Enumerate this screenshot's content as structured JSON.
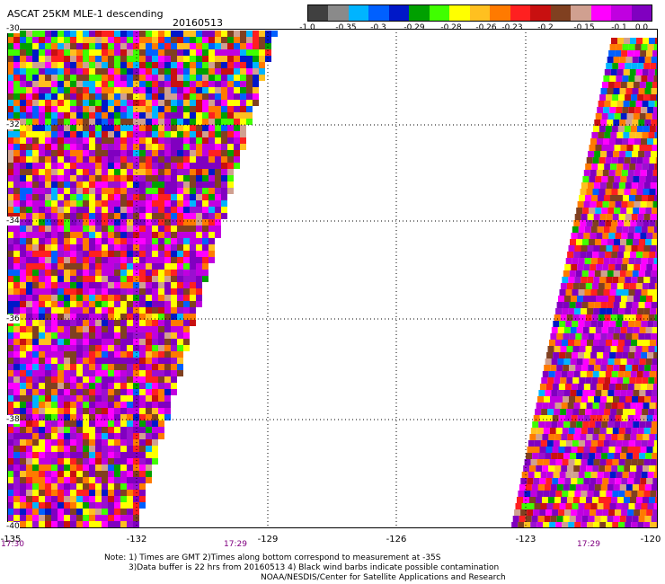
{
  "header": {
    "title": "ASCAT 25KM MLE-1 descending",
    "date": "20160513"
  },
  "colorbar": {
    "colors": [
      "#404040",
      "#8a8a8a",
      "#00b4ff",
      "#0060ff",
      "#0018c8",
      "#00a000",
      "#40ff00",
      "#ffff00",
      "#ffc020",
      "#ff7a00",
      "#ff2020",
      "#c81010",
      "#804020",
      "#d0a090",
      "#ff00ff",
      "#c000e0",
      "#8000c0"
    ],
    "labels": [
      "-1.0",
      "-0.35",
      "-0.3",
      "-0.29",
      "-0.28",
      "-0.26",
      "-0.23",
      "-0.2",
      "-0.15",
      "-0.1",
      "0.0"
    ]
  },
  "axes": {
    "x_ticks": [
      "-135",
      "-132",
      "-129",
      "-126",
      "-123",
      "-120"
    ],
    "y_ticks": [
      "-30",
      "-32",
      "-34",
      "-36",
      "-38",
      "-40"
    ],
    "times": [
      "17:30",
      "17:29",
      "17:29"
    ],
    "gridlines": "dotted"
  },
  "swaths": {
    "west_time": "17:30",
    "east_time": "17:29"
  },
  "notes": {
    "line1": "Note: 1) Times are GMT 2)Times along bottom correspond to measurement at -35S",
    "line2": "3)Data buffer is 22 hrs from 20160513 4) Black wind barbs indicate possible contamination",
    "line3": "NOAA/NESDIS/Center for Satellite Applications and Research"
  }
}
